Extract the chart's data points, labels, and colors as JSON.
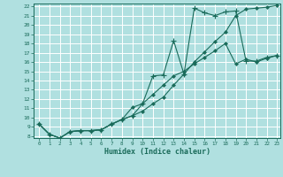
{
  "xlabel": "Humidex (Indice chaleur)",
  "bg_color": "#b0e0e0",
  "grid_color": "#ffffff",
  "line_color": "#1a6b5a",
  "xlim": [
    0,
    23
  ],
  "ylim": [
    8,
    22
  ],
  "yticks": [
    8,
    9,
    10,
    11,
    12,
    13,
    14,
    15,
    16,
    17,
    18,
    19,
    20,
    21,
    22
  ],
  "xticks": [
    0,
    1,
    2,
    3,
    4,
    5,
    6,
    7,
    8,
    9,
    10,
    11,
    12,
    13,
    14,
    15,
    16,
    17,
    18,
    19,
    20,
    21,
    22,
    23
  ],
  "line1_x": [
    0,
    1,
    2,
    3,
    4,
    5,
    6,
    7,
    8,
    9,
    10,
    11,
    12,
    13,
    14,
    15,
    16,
    17,
    18,
    19,
    20,
    21,
    22,
    23
  ],
  "line1_y": [
    9.3,
    8.2,
    7.8,
    8.5,
    8.6,
    8.6,
    8.7,
    9.3,
    9.8,
    10.2,
    10.7,
    11.5,
    12.2,
    13.5,
    14.7,
    16.0,
    17.1,
    18.2,
    19.2,
    21.0,
    21.7,
    21.8,
    21.9,
    22.1
  ],
  "line2_x": [
    0,
    1,
    2,
    3,
    4,
    5,
    6,
    7,
    8,
    9,
    10,
    11,
    12,
    13,
    14,
    15,
    16,
    17,
    18,
    19,
    20,
    21,
    22,
    23
  ],
  "line2_y": [
    9.3,
    8.2,
    7.8,
    8.5,
    8.6,
    8.6,
    8.7,
    9.3,
    9.8,
    10.2,
    11.5,
    14.5,
    14.6,
    18.3,
    14.7,
    21.8,
    21.3,
    21.0,
    21.4,
    21.5,
    16.1,
    16.1,
    16.5,
    16.7
  ],
  "line3_x": [
    0,
    1,
    2,
    3,
    4,
    5,
    6,
    7,
    8,
    9,
    10,
    11,
    12,
    13,
    14,
    15,
    16,
    17,
    18,
    19,
    20,
    21,
    22,
    23
  ],
  "line3_y": [
    9.3,
    8.2,
    7.8,
    8.5,
    8.6,
    8.6,
    8.7,
    9.3,
    9.8,
    11.1,
    11.5,
    12.5,
    13.5,
    14.5,
    15.0,
    15.8,
    16.5,
    17.2,
    18.0,
    15.8,
    16.3,
    16.0,
    16.4,
    16.7
  ]
}
